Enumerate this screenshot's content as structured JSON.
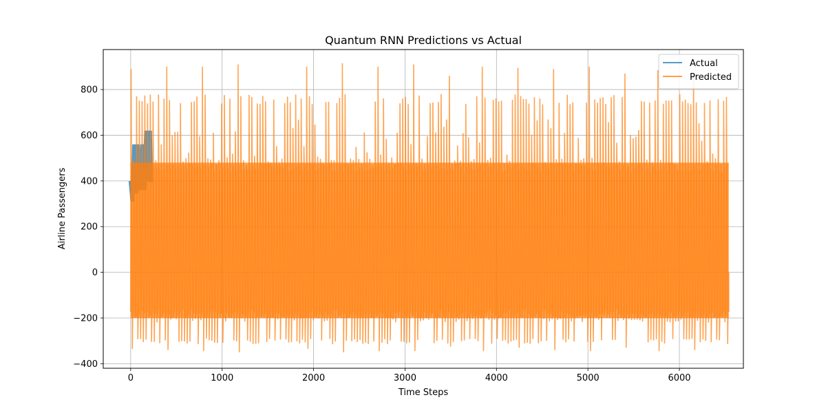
{
  "chart_data": {
    "type": "line",
    "title": "Quantum RNN Predictions vs Actual",
    "xlabel": "Time Steps",
    "ylabel": "Airline Passengers",
    "xlim": [
      -300,
      6700
    ],
    "ylim": [
      -420,
      975
    ],
    "xticks": [
      0,
      1000,
      2000,
      3000,
      4000,
      5000,
      6000
    ],
    "yticks": [
      -400,
      -200,
      0,
      200,
      400,
      600,
      800
    ],
    "grid": true,
    "legend_position": "top-right",
    "series": [
      {
        "name": "Actual",
        "color": "#1f77b4",
        "points": [
          [
            0,
            400
          ],
          [
            20,
            310
          ],
          [
            40,
            560
          ],
          [
            60,
            345
          ],
          [
            80,
            560
          ],
          [
            100,
            360
          ],
          [
            130,
            560
          ],
          [
            150,
            360
          ],
          [
            170,
            620
          ],
          [
            190,
            400
          ],
          [
            210,
            620
          ],
          [
            220,
            395
          ]
        ]
      },
      {
        "name": "Predicted",
        "color": "#ff7f0e",
        "period": 30,
        "x_start": 0,
        "x_end": 6540,
        "upper_envelope_typical": 760,
        "lower_envelope_typical": -300,
        "band_upper": 480,
        "band_lower": -200,
        "peak_maxima": [
          [
            12,
            890
          ],
          [
            385,
            900
          ],
          [
            770,
            900
          ],
          [
            1160,
            910
          ],
          [
            1545,
            915
          ],
          [
            1930,
            900
          ],
          [
            2310,
            915
          ],
          [
            2700,
            900
          ],
          [
            3085,
            910
          ],
          [
            3470,
            860
          ],
          [
            3850,
            900
          ],
          [
            4240,
            895
          ],
          [
            4620,
            890
          ],
          [
            5000,
            900
          ],
          [
            5390,
            870
          ],
          [
            5770,
            885
          ],
          [
            6150,
            875
          ]
        ],
        "trough_minima": [
          [
            12,
            -335
          ],
          [
            385,
            -340
          ],
          [
            770,
            -345
          ],
          [
            1160,
            -350
          ],
          [
            1545,
            -350
          ],
          [
            1930,
            -335
          ],
          [
            2310,
            -350
          ],
          [
            2700,
            -345
          ],
          [
            3085,
            -345
          ],
          [
            3470,
            -325
          ],
          [
            3850,
            -345
          ],
          [
            4240,
            -330
          ],
          [
            4620,
            -340
          ],
          [
            5000,
            -345
          ],
          [
            5390,
            -330
          ],
          [
            5770,
            -345
          ],
          [
            6150,
            -340
          ]
        ]
      }
    ]
  }
}
